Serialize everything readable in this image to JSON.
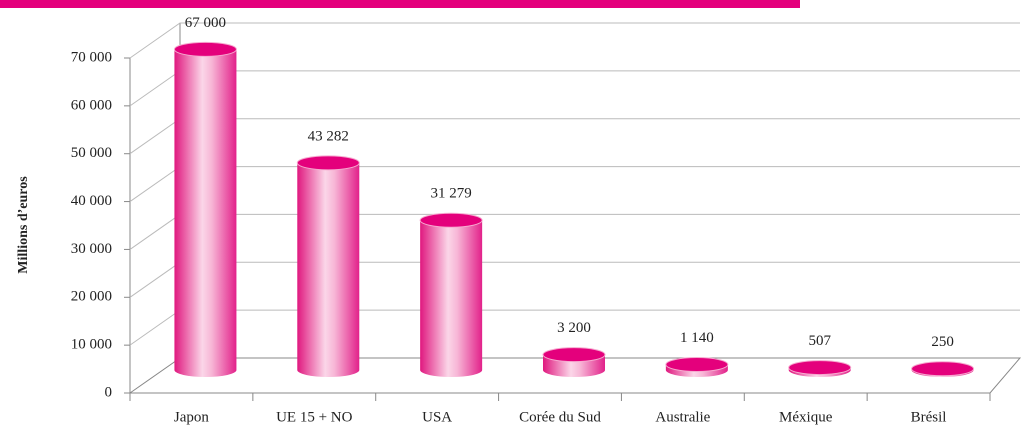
{
  "chart_data": {
    "type": "bar3d",
    "y_label": "Millions d’euros",
    "categories": [
      "Japon",
      "UE 15 + NO",
      "USA",
      "Corée du Sud",
      "Australie",
      "Méxique",
      "Brésil"
    ],
    "values": [
      67000,
      43282,
      31279,
      3200,
      1140,
      507,
      250
    ],
    "value_labels": [
      "67 000",
      "43 282",
      "31 279",
      "3 200",
      "1 140",
      "507",
      "250"
    ],
    "color": "#e4007c",
    "ylim": [
      0,
      70000
    ],
    "yticks": [
      0,
      {
        "value": 10000,
        "label": "10 000"
      },
      {
        "value": 20000,
        "label": "20 000"
      },
      {
        "value": 30000,
        "label": "30 000"
      },
      {
        "value": 40000,
        "label": "40 000"
      },
      {
        "value": 50000,
        "label": "50 000"
      },
      {
        "value": 60000,
        "label": "60 000"
      },
      {
        "value": 70000,
        "label": "70 000"
      }
    ],
    "grid": true
  }
}
